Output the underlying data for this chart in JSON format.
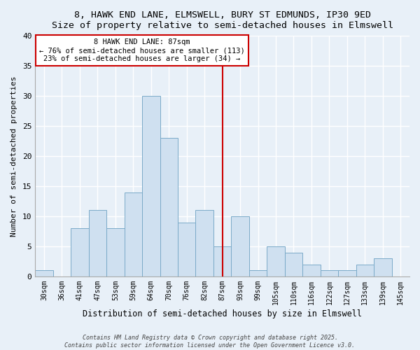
{
  "title": "8, HAWK END LANE, ELMSWELL, BURY ST EDMUNDS, IP30 9ED",
  "subtitle": "Size of property relative to semi-detached houses in Elmswell",
  "xlabel": "Distribution of semi-detached houses by size in Elmswell",
  "ylabel": "Number of semi-detached properties",
  "bar_color": "#cfe0f0",
  "bar_edge_color": "#7aaac8",
  "background_color": "#e8f0f8",
  "plot_bg_color": "#e8f0f8",
  "categories": [
    "30sqm",
    "36sqm",
    "41sqm",
    "47sqm",
    "53sqm",
    "59sqm",
    "64sqm",
    "70sqm",
    "76sqm",
    "82sqm",
    "87sqm",
    "93sqm",
    "99sqm",
    "105sqm",
    "110sqm",
    "116sqm",
    "122sqm",
    "127sqm",
    "133sqm",
    "139sqm",
    "145sqm"
  ],
  "values": [
    1,
    0,
    8,
    11,
    8,
    14,
    30,
    23,
    9,
    11,
    5,
    10,
    1,
    5,
    4,
    2,
    1,
    1,
    2,
    3,
    0
  ],
  "vline_x": 10,
  "vline_color": "#cc0000",
  "annotation_title": "8 HAWK END LANE: 87sqm",
  "annotation_line1": "← 76% of semi-detached houses are smaller (113)",
  "annotation_line2": "23% of semi-detached houses are larger (34) →",
  "annotation_box_color": "#ffffff",
  "annotation_box_edge": "#cc0000",
  "ylim": [
    0,
    40
  ],
  "yticks": [
    0,
    5,
    10,
    15,
    20,
    25,
    30,
    35,
    40
  ],
  "footer1": "Contains HM Land Registry data © Crown copyright and database right 2025.",
  "footer2": "Contains public sector information licensed under the Open Government Licence v3.0."
}
